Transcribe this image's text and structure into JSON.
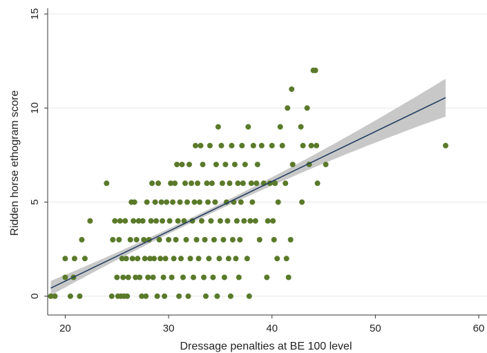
{
  "chart_data": {
    "type": "scatter",
    "title": "",
    "xlabel": "Dressage penalties at BE 100 level",
    "ylabel": "Ridden horse ethogram score",
    "xlim": [
      18.3,
      60.8
    ],
    "ylim": [
      -1.0,
      15.3
    ],
    "xticks": [
      20,
      30,
      40,
      50,
      60
    ],
    "yticks": [
      0,
      5,
      10,
      15
    ],
    "xtick_labels": [
      "20",
      "30",
      "40",
      "50",
      "60"
    ],
    "ytick_labels": [
      "0",
      "5",
      "10",
      "15"
    ],
    "grid": "horizontal",
    "legend": "none",
    "colors": {
      "points": "#5a7a2a",
      "fit_line": "#1f3a5f",
      "confidence_band": "#c8c8c8",
      "grid": "#e6e6e6",
      "axis": "#333333"
    },
    "series": [
      {
        "points": [
          [
            18.6,
            0
          ],
          [
            19.0,
            0
          ],
          [
            20.0,
            2
          ],
          [
            20.0,
            1
          ],
          [
            20.5,
            0
          ],
          [
            20.8,
            1
          ],
          [
            20.9,
            2
          ],
          [
            21.4,
            0
          ],
          [
            21.6,
            3
          ],
          [
            21.9,
            2
          ],
          [
            22.4,
            4
          ],
          [
            24.0,
            6
          ],
          [
            24.5,
            0
          ],
          [
            24.6,
            3
          ],
          [
            24.8,
            4
          ],
          [
            25.0,
            1
          ],
          [
            25.1,
            0
          ],
          [
            25.2,
            3
          ],
          [
            25.3,
            4
          ],
          [
            25.4,
            0
          ],
          [
            25.5,
            2
          ],
          [
            25.6,
            1
          ],
          [
            25.7,
            0
          ],
          [
            25.8,
            4
          ],
          [
            25.9,
            2
          ],
          [
            26.0,
            0
          ],
          [
            26.1,
            1
          ],
          [
            26.3,
            3
          ],
          [
            26.4,
            5
          ],
          [
            26.5,
            2
          ],
          [
            26.6,
            4
          ],
          [
            26.7,
            5
          ],
          [
            26.8,
            1
          ],
          [
            26.9,
            3
          ],
          [
            27.0,
            2
          ],
          [
            27.1,
            4
          ],
          [
            27.2,
            1
          ],
          [
            27.4,
            0
          ],
          [
            27.5,
            4
          ],
          [
            27.6,
            3
          ],
          [
            27.7,
            2
          ],
          [
            27.8,
            0
          ],
          [
            27.9,
            5
          ],
          [
            28.0,
            1
          ],
          [
            28.1,
            3
          ],
          [
            28.2,
            2
          ],
          [
            28.3,
            4
          ],
          [
            28.4,
            6
          ],
          [
            28.5,
            1
          ],
          [
            28.6,
            2
          ],
          [
            28.7,
            5
          ],
          [
            28.8,
            4
          ],
          [
            28.9,
            0
          ],
          [
            29.0,
            6
          ],
          [
            29.1,
            3
          ],
          [
            29.2,
            2
          ],
          [
            29.3,
            5
          ],
          [
            29.4,
            4
          ],
          [
            29.5,
            1
          ],
          [
            29.6,
            0
          ],
          [
            29.7,
            2
          ],
          [
            29.8,
            5
          ],
          [
            30.0,
            3
          ],
          [
            30.1,
            4
          ],
          [
            30.2,
            6
          ],
          [
            30.3,
            1
          ],
          [
            30.4,
            5
          ],
          [
            30.5,
            2
          ],
          [
            30.6,
            6
          ],
          [
            30.7,
            3
          ],
          [
            30.8,
            7
          ],
          [
            30.9,
            4
          ],
          [
            31.0,
            0
          ],
          [
            31.1,
            5
          ],
          [
            31.2,
            2
          ],
          [
            31.3,
            7
          ],
          [
            31.4,
            1
          ],
          [
            31.5,
            4
          ],
          [
            31.6,
            6
          ],
          [
            31.7,
            3
          ],
          [
            31.8,
            5
          ],
          [
            31.9,
            0
          ],
          [
            32.0,
            7
          ],
          [
            32.1,
            2
          ],
          [
            32.2,
            6
          ],
          [
            32.3,
            4
          ],
          [
            32.4,
            1
          ],
          [
            32.5,
            5
          ],
          [
            32.6,
            8
          ],
          [
            32.7,
            3
          ],
          [
            32.8,
            6
          ],
          [
            32.9,
            2
          ],
          [
            33.0,
            5
          ],
          [
            33.1,
            8
          ],
          [
            33.2,
            4
          ],
          [
            33.3,
            7
          ],
          [
            33.4,
            1
          ],
          [
            33.5,
            3
          ],
          [
            33.6,
            0
          ],
          [
            33.7,
            6
          ],
          [
            33.8,
            5
          ],
          [
            33.9,
            2
          ],
          [
            34.0,
            8
          ],
          [
            34.1,
            4
          ],
          [
            34.2,
            6
          ],
          [
            34.3,
            1
          ],
          [
            34.4,
            3
          ],
          [
            34.5,
            5
          ],
          [
            34.6,
            7
          ],
          [
            34.7,
            0
          ],
          [
            34.8,
            9
          ],
          [
            34.9,
            2
          ],
          [
            35.0,
            4
          ],
          [
            35.1,
            8
          ],
          [
            35.2,
            6
          ],
          [
            35.3,
            3
          ],
          [
            35.4,
            1
          ],
          [
            35.5,
            7
          ],
          [
            35.6,
            5
          ],
          [
            35.7,
            4
          ],
          [
            35.8,
            2
          ],
          [
            35.9,
            6
          ],
          [
            36.0,
            0
          ],
          [
            36.1,
            8
          ],
          [
            36.2,
            3
          ],
          [
            36.3,
            5
          ],
          [
            36.4,
            7
          ],
          [
            36.5,
            2
          ],
          [
            36.6,
            4
          ],
          [
            36.7,
            6
          ],
          [
            36.8,
            1
          ],
          [
            36.9,
            3
          ],
          [
            37.0,
            5
          ],
          [
            37.1,
            8
          ],
          [
            37.2,
            6
          ],
          [
            37.3,
            4
          ],
          [
            37.4,
            7
          ],
          [
            37.6,
            2
          ],
          [
            37.7,
            9
          ],
          [
            37.8,
            0
          ],
          [
            37.9,
            4
          ],
          [
            38.0,
            6
          ],
          [
            38.1,
            5
          ],
          [
            38.2,
            8
          ],
          [
            38.4,
            4
          ],
          [
            38.5,
            6
          ],
          [
            38.6,
            7
          ],
          [
            38.8,
            3
          ],
          [
            39.0,
            8
          ],
          [
            39.2,
            6
          ],
          [
            39.5,
            1
          ],
          [
            39.6,
            4
          ],
          [
            39.8,
            6
          ],
          [
            40.0,
            8
          ],
          [
            40.1,
            4
          ],
          [
            40.2,
            3
          ],
          [
            40.3,
            6
          ],
          [
            40.5,
            2
          ],
          [
            40.6,
            5
          ],
          [
            40.8,
            9
          ],
          [
            41.0,
            8
          ],
          [
            41.3,
            6
          ],
          [
            41.4,
            2
          ],
          [
            41.5,
            10
          ],
          [
            41.6,
            1
          ],
          [
            41.8,
            3
          ],
          [
            41.9,
            11
          ],
          [
            42.0,
            7
          ],
          [
            42.8,
            9
          ],
          [
            42.9,
            5
          ],
          [
            43.0,
            8
          ],
          [
            43.4,
            10
          ],
          [
            43.6,
            7
          ],
          [
            43.8,
            8
          ],
          [
            44.0,
            12
          ],
          [
            44.2,
            12
          ],
          [
            44.3,
            8
          ],
          [
            44.4,
            6
          ],
          [
            45.2,
            7
          ],
          [
            56.8,
            8
          ]
        ]
      }
    ],
    "fit": {
      "intercept": -4.5,
      "slope": 0.265,
      "x_range": [
        18.6,
        56.8
      ],
      "ci_halfwidth_center": 0.13,
      "ci_center_x": 32.0,
      "ci_halfwidth_growth": 0.00142
    }
  }
}
